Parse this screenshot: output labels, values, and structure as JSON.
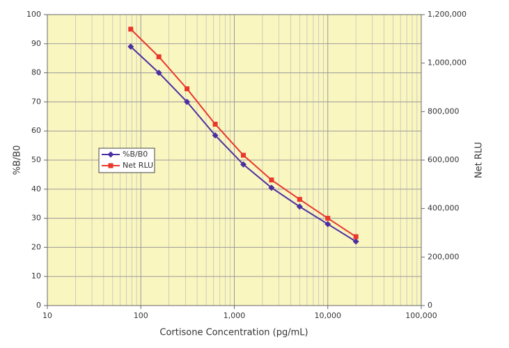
{
  "chart_data": {
    "type": "line",
    "x_label": "Cortisone Concentration (pg/mL)",
    "y_label": "%B/B0",
    "y2_label": "Net RLU",
    "x": [
      78,
      156,
      312,
      625,
      1250,
      2500,
      5000,
      10000,
      20000
    ],
    "series": [
      {
        "name": "%B/B0",
        "color": "#4b2fa0",
        "marker": "diamond",
        "values": [
          89,
          80,
          70,
          58.5,
          48.5,
          40.5,
          34,
          28,
          22
        ]
      },
      {
        "name": "Net RLU",
        "color": "#e8372b",
        "marker": "square",
        "axis": "y2",
        "values": [
          1140000,
          1026000,
          894000,
          748000,
          620000,
          518000,
          438000,
          360000,
          284000
        ]
      }
    ],
    "xlog": true,
    "xlim": [
      10,
      100000
    ],
    "xticks": [
      10,
      100,
      {
        "value": 1000,
        "label": "1,000"
      },
      {
        "value": 10000,
        "label": "10,000"
      },
      {
        "value": 100000,
        "label": "100,000"
      }
    ],
    "ylim": [
      0,
      100
    ],
    "yticks": [
      0,
      10,
      20,
      30,
      40,
      50,
      60,
      70,
      80,
      90,
      100
    ],
    "y2lim": [
      0,
      1200000
    ],
    "y2ticks": [
      0,
      {
        "value": 200000,
        "label": "200,000"
      },
      {
        "value": 400000,
        "label": "400,000"
      },
      {
        "value": 600000,
        "label": "600,000"
      },
      {
        "value": 800000,
        "label": "800,000"
      },
      {
        "value": 1000000,
        "label": "1,000,000"
      },
      {
        "value": 1200000,
        "label": "1,200,000"
      }
    ],
    "grid": true,
    "legend": "center-left"
  }
}
